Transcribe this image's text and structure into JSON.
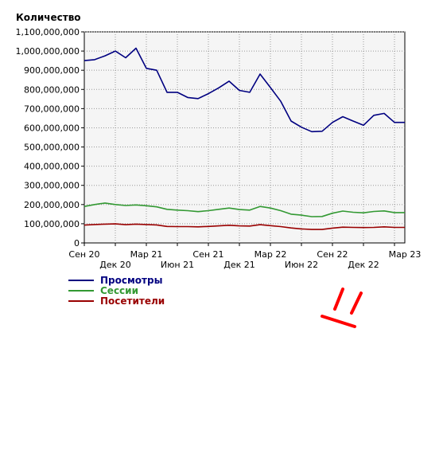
{
  "chart_data": {
    "type": "line",
    "title": "Количество",
    "ylim": [
      0,
      1100000000
    ],
    "yticks": [
      "0",
      "100,000,000",
      "200,000,000",
      "300,000,000",
      "400,000,000",
      "500,000,000",
      "600,000,000",
      "700,000,000",
      "800,000,000",
      "900,000,000",
      "1,000,000,000",
      "1,100,000,000"
    ],
    "xticks": [
      "Сен 20",
      "Дек 20",
      "Мар 21",
      "Июн 21",
      "Сен 21",
      "Дек 21",
      "Мар 22",
      "Июн 22",
      "Сен 22",
      "Дек 22",
      "Мар 23"
    ],
    "x": [
      "Сен 20",
      "Окт 20",
      "Ноя 20",
      "Дек 20",
      "Янв 21",
      "Фев 21",
      "Мар 21",
      "Апр 21",
      "Май 21",
      "Июн 21",
      "Июл 21",
      "Авг 21",
      "Сен 21",
      "Окт 21",
      "Ноя 21",
      "Дек 21",
      "Янв 22",
      "Фев 22",
      "Мар 22",
      "Апр 22",
      "Май 22",
      "Июн 22",
      "Июл 22",
      "Авг 22",
      "Сен 22",
      "Окт 22",
      "Ноя 22",
      "Дек 22",
      "Янв 23",
      "Фев 23",
      "Мар 23",
      "Апр 23"
    ],
    "series": [
      {
        "name": "Просмотры",
        "color": "#000080",
        "values": [
          950000000,
          955000000,
          975000000,
          1000000000,
          965000000,
          1015000000,
          910000000,
          900000000,
          785000000,
          785000000,
          758000000,
          752000000,
          778000000,
          808000000,
          843000000,
          795000000,
          785000000,
          880000000,
          810000000,
          738000000,
          635000000,
          603000000,
          580000000,
          582000000,
          628000000,
          658000000,
          635000000,
          613000000,
          665000000,
          675000000,
          628000000,
          628000000
        ]
      },
      {
        "name": "Сессии",
        "color": "#339933",
        "values": [
          190000000,
          200000000,
          208000000,
          200000000,
          195000000,
          198000000,
          194000000,
          188000000,
          175000000,
          171000000,
          168000000,
          163000000,
          168000000,
          175000000,
          182000000,
          174000000,
          171000000,
          190000000,
          182000000,
          168000000,
          150000000,
          145000000,
          137000000,
          138000000,
          155000000,
          166000000,
          160000000,
          157000000,
          164000000,
          167000000,
          158000000,
          158000000
        ]
      },
      {
        "name": "Посетители",
        "color": "#990000",
        "values": [
          93000000,
          96000000,
          98000000,
          99000000,
          95000000,
          98000000,
          96000000,
          94000000,
          86000000,
          85000000,
          85000000,
          84000000,
          86000000,
          89000000,
          92000000,
          89000000,
          88000000,
          95000000,
          90000000,
          85000000,
          78000000,
          73000000,
          70000000,
          70000000,
          77000000,
          82000000,
          81000000,
          80000000,
          81000000,
          84000000,
          81000000,
          81000000
        ]
      }
    ],
    "grid": true,
    "legend": "bottom-left"
  },
  "annotation_color": "#ff0000"
}
